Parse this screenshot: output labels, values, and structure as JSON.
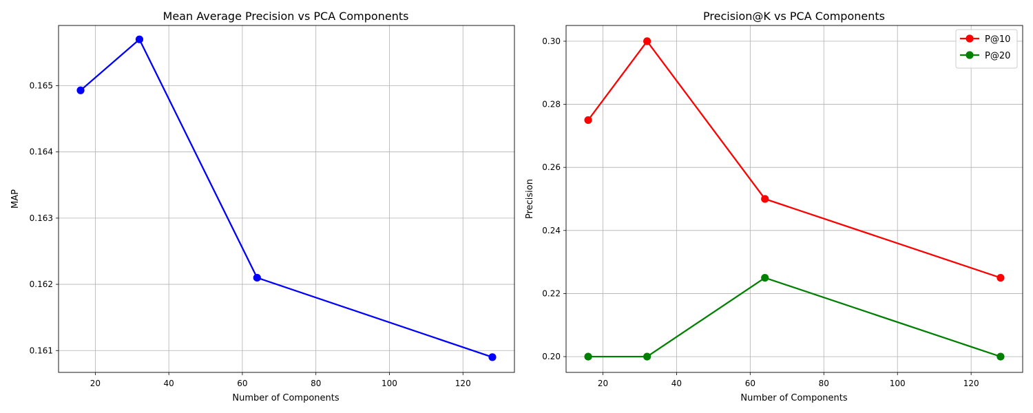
{
  "chart_data": [
    {
      "type": "line",
      "title": "Mean Average Precision vs PCA Components",
      "xlabel": "Number of Components",
      "ylabel": "MAP",
      "xlim": [
        10,
        134
      ],
      "ylim": [
        0.16067,
        0.16591
      ],
      "xticks": [
        20,
        40,
        60,
        80,
        100,
        120
      ],
      "yticks": [
        0.161,
        0.162,
        0.163,
        0.164,
        0.165
      ],
      "ytick_labels": [
        "0.161",
        "0.162",
        "0.163",
        "0.164",
        "0.165"
      ],
      "grid": true,
      "legend": null,
      "x": [
        16,
        32,
        64,
        128
      ],
      "series": [
        {
          "values": [
            0.16493,
            0.1657,
            0.1621,
            0.1609
          ],
          "color": "#0000ff"
        }
      ]
    },
    {
      "type": "line",
      "title": "Precision@K vs PCA Components",
      "xlabel": "Number of Components",
      "ylabel": "Precision",
      "xlim": [
        10,
        134
      ],
      "ylim": [
        0.195,
        0.305
      ],
      "xticks": [
        20,
        40,
        60,
        80,
        100,
        120
      ],
      "yticks": [
        0.2,
        0.22,
        0.24,
        0.26,
        0.28,
        0.3
      ],
      "ytick_labels": [
        "0.20",
        "0.22",
        "0.24",
        "0.26",
        "0.28",
        "0.30"
      ],
      "grid": true,
      "legend": "top-right",
      "x": [
        16,
        32,
        64,
        128
      ],
      "series": [
        {
          "name": "P@10",
          "values": [
            0.275,
            0.3,
            0.25,
            0.225
          ],
          "color": "#ff0000"
        },
        {
          "name": "P@20",
          "values": [
            0.2,
            0.2,
            0.225,
            0.2
          ],
          "color": "#008000"
        }
      ]
    }
  ]
}
